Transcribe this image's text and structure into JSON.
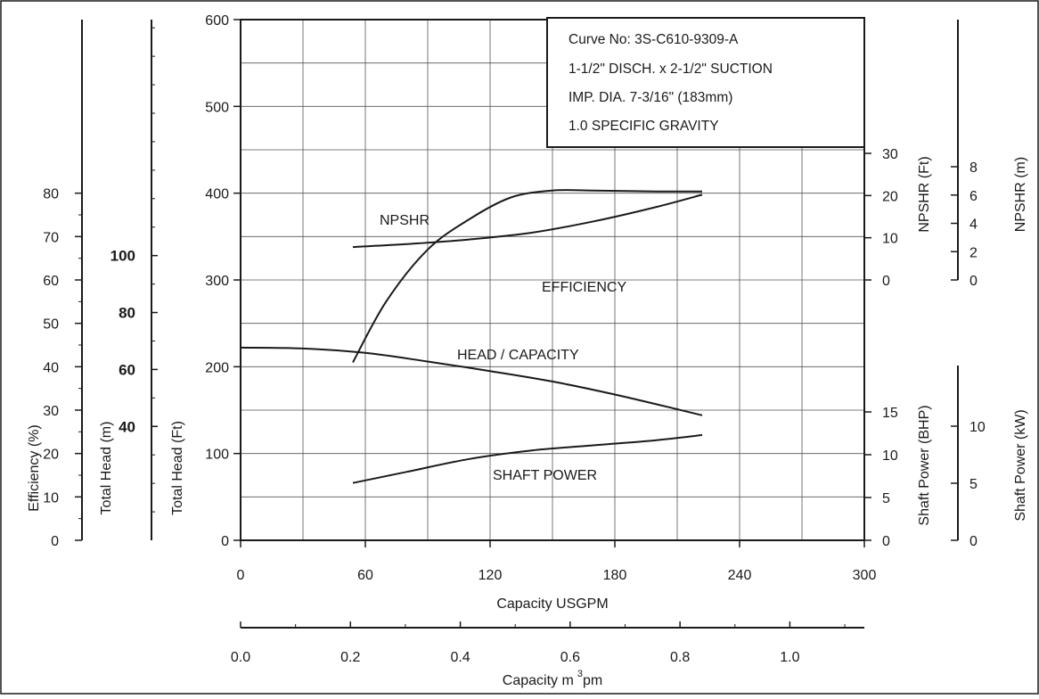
{
  "chart_data": {
    "type": "line",
    "title": "",
    "info_box": [
      "Curve No: 3S-C610-9309-A",
      "1-1/2\" DISCH. x 2-1/2\" SUCTION",
      "IMP. DIA. 7-3/16\" (183mm)",
      "1.0 SPECIFIC GRAVITY"
    ],
    "xlabel": "Capacity USGPM",
    "xlim": [
      0,
      300
    ],
    "x_ticks": [
      "0",
      "60",
      "120",
      "180",
      "240",
      "300"
    ],
    "x2": {
      "label_main": "Capacity m",
      "label_sup": "3",
      "label_tail": "pm",
      "lim": [
        0.0,
        1.1356
      ],
      "ticks": [
        "0.0",
        "0.2",
        "0.4",
        "0.6",
        "0.8",
        "1.0"
      ],
      "tick_values": [
        0.0,
        0.2,
        0.4,
        0.6,
        0.8,
        1.0
      ]
    },
    "grid": true,
    "left_axes": {
      "efficiency": {
        "label": "Efficiency (%)",
        "ticks": [
          "0",
          "10",
          "20",
          "30",
          "40",
          "50",
          "60",
          "70",
          "80"
        ],
        "tick_values": [
          0,
          10,
          20,
          30,
          40,
          50,
          60,
          70,
          80
        ],
        "lim": [
          0,
          120
        ]
      },
      "head_m": {
        "label": "Total Head (m)",
        "ticks": [
          "40",
          "60",
          "80",
          "100"
        ],
        "tick_values": [
          40,
          60,
          80,
          100
        ],
        "lim": [
          0,
          182.88
        ]
      },
      "head_ft": {
        "label": "Total Head (Ft)",
        "ticks": [
          "0",
          "100",
          "200",
          "300",
          "400",
          "500",
          "600"
        ],
        "tick_values": [
          0,
          100,
          200,
          300,
          400,
          500,
          600
        ],
        "lim": [
          0,
          600
        ]
      }
    },
    "right_axes": {
      "npshr_ft": {
        "label": "NPSHR (Ft)",
        "ticks": [
          "0",
          "10",
          "20",
          "30"
        ],
        "tick_values": [
          0,
          10,
          20,
          30
        ]
      },
      "npshr_m": {
        "label": "NPSHR (m)",
        "ticks": [
          "0",
          "2",
          "4",
          "6",
          "8"
        ],
        "tick_values": [
          0,
          2,
          4,
          6,
          8
        ]
      },
      "power_bhp": {
        "label": "Shaft Power (BHP)",
        "ticks": [
          "0",
          "5",
          "10",
          "15"
        ],
        "tick_values": [
          0,
          5,
          10,
          15
        ]
      },
      "power_kw": {
        "label": "Shaft Power (kW)",
        "ticks": [
          "0",
          "5",
          "10"
        ],
        "tick_values": [
          0,
          5,
          10
        ]
      }
    },
    "series": [
      {
        "name": "HEAD / CAPACITY",
        "axis": "head_ft",
        "x": [
          0,
          30,
          60,
          90,
          120,
          150,
          180,
          210,
          222
        ],
        "values": [
          222,
          221,
          216,
          206,
          195,
          183,
          168,
          151,
          144
        ]
      },
      {
        "name": "EFFICIENCY",
        "axis": "efficiency",
        "x": [
          54,
          70,
          90,
          110,
          130,
          150,
          170,
          200,
          222
        ],
        "values": [
          41,
          55,
          67,
          74,
          79,
          80.6,
          80.6,
          80.4,
          80.4
        ]
      },
      {
        "name": "NPSHR",
        "axis": "npshr_ft",
        "x": [
          54,
          80,
          110,
          140,
          170,
          200,
          222
        ],
        "values": [
          7.8,
          8.5,
          9.6,
          11.2,
          13.9,
          17.3,
          20.2
        ]
      },
      {
        "name": "SHAFT POWER",
        "axis": "power_bhp",
        "x": [
          54,
          80,
          110,
          140,
          170,
          200,
          222
        ],
        "values": [
          6.7,
          8.0,
          9.5,
          10.5,
          11.1,
          11.7,
          12.3
        ]
      }
    ]
  }
}
